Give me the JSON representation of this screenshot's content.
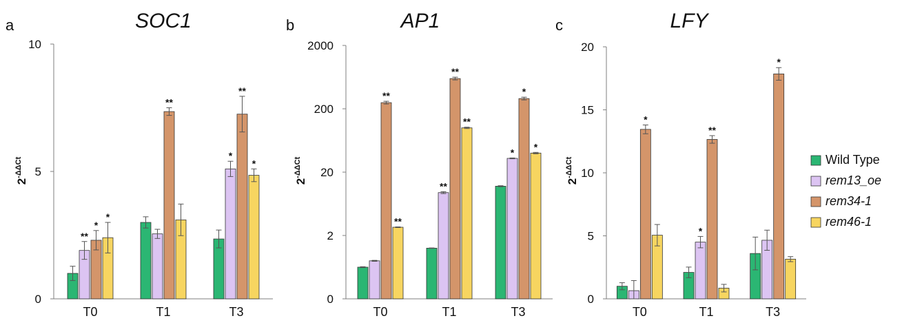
{
  "legend": [
    {
      "name": "Wild Type",
      "italic": false,
      "color": "#2bb673"
    },
    {
      "name": "rem13_oe",
      "italic": true,
      "color": "#dcc4f2"
    },
    {
      "name": "rem34-1",
      "italic": true,
      "color": "#d4956a"
    },
    {
      "name": "rem46-1",
      "italic": true,
      "color": "#f7d560"
    }
  ],
  "ylabel_base": "2",
  "ylabel_sup": "-ΔΔCt",
  "chart_data": [
    {
      "type": "bar",
      "panel": "a",
      "title": "SOC1",
      "scale": "linear",
      "ylim": [
        0,
        10
      ],
      "ticks": [
        0,
        5,
        10
      ],
      "tick_labels": [
        "0",
        "5",
        "10"
      ],
      "categories": [
        "T0",
        "T1",
        "T3"
      ],
      "series": [
        {
          "name": "Wild Type",
          "values": [
            1.0,
            3.0,
            2.35
          ],
          "errors": [
            0.28,
            0.22,
            0.35
          ],
          "sig": [
            "",
            "",
            ""
          ]
        },
        {
          "name": "rem13_oe",
          "values": [
            1.9,
            2.55,
            5.1
          ],
          "errors": [
            0.35,
            0.18,
            0.3
          ],
          "sig": [
            "**",
            "",
            "*"
          ]
        },
        {
          "name": "rem34-1",
          "values": [
            2.3,
            7.35,
            7.25
          ],
          "errors": [
            0.38,
            0.15,
            0.7
          ],
          "sig": [
            "*",
            "**",
            "**"
          ]
        },
        {
          "name": "rem46-1",
          "values": [
            2.4,
            3.1,
            4.85
          ],
          "errors": [
            0.6,
            0.62,
            0.25
          ],
          "sig": [
            "*",
            "",
            "*"
          ]
        }
      ]
    },
    {
      "type": "bar",
      "panel": "b",
      "title": "AP1",
      "scale": "log",
      "ylim": [
        0,
        2000
      ],
      "ticks": [
        0,
        2,
        20,
        200,
        2000
      ],
      "tick_labels": [
        "0",
        "2",
        "20",
        "200",
        "2000"
      ],
      "categories": [
        "T0",
        "T1",
        "T3"
      ],
      "series": [
        {
          "name": "Wild Type",
          "values": [
            1.0,
            1.6,
            12.0
          ],
          "errors": [
            0.62,
            0.35,
            0.7
          ],
          "sig": [
            "",
            "",
            ""
          ]
        },
        {
          "name": "rem13_oe",
          "values": [
            1.2,
            9.5,
            33.0
          ],
          "errors": [
            0.7,
            1.4,
            0.6
          ],
          "sig": [
            "",
            "**",
            "*"
          ]
        },
        {
          "name": "rem34-1",
          "values": [
            250.0,
            600.0,
            290.0
          ],
          "errors": [
            2,
            2,
            2
          ],
          "sig": [
            "**",
            "**",
            "*"
          ]
        },
        {
          "name": "rem46-1",
          "values": [
            2.7,
            100.0,
            40.0
          ],
          "errors": [
            0.5,
            1,
            1
          ],
          "sig": [
            "**",
            "**",
            "*"
          ]
        }
      ]
    },
    {
      "type": "bar",
      "panel": "c",
      "title": "LFY",
      "scale": "linear",
      "ylim": [
        0,
        20
      ],
      "ticks": [
        0,
        5,
        10,
        15,
        20
      ],
      "tick_labels": [
        "0",
        "5",
        "10",
        "15",
        "20"
      ],
      "categories": [
        "T0",
        "T1",
        "T3"
      ],
      "series": [
        {
          "name": "Wild Type",
          "values": [
            1.0,
            2.1,
            3.6
          ],
          "errors": [
            0.28,
            0.42,
            1.3
          ],
          "sig": [
            "",
            "",
            ""
          ]
        },
        {
          "name": "rem13_oe",
          "values": [
            0.65,
            4.5,
            4.65
          ],
          "errors": [
            0.8,
            0.45,
            0.8
          ],
          "sig": [
            "",
            "*",
            ""
          ]
        },
        {
          "name": "rem34-1",
          "values": [
            13.45,
            12.65,
            17.85
          ],
          "errors": [
            0.35,
            0.3,
            0.5
          ],
          "sig": [
            "*",
            "**",
            "*"
          ]
        },
        {
          "name": "rem46-1",
          "values": [
            5.05,
            0.85,
            3.15
          ],
          "errors": [
            0.85,
            0.3,
            0.2
          ],
          "sig": [
            "",
            "",
            ""
          ]
        }
      ]
    }
  ]
}
